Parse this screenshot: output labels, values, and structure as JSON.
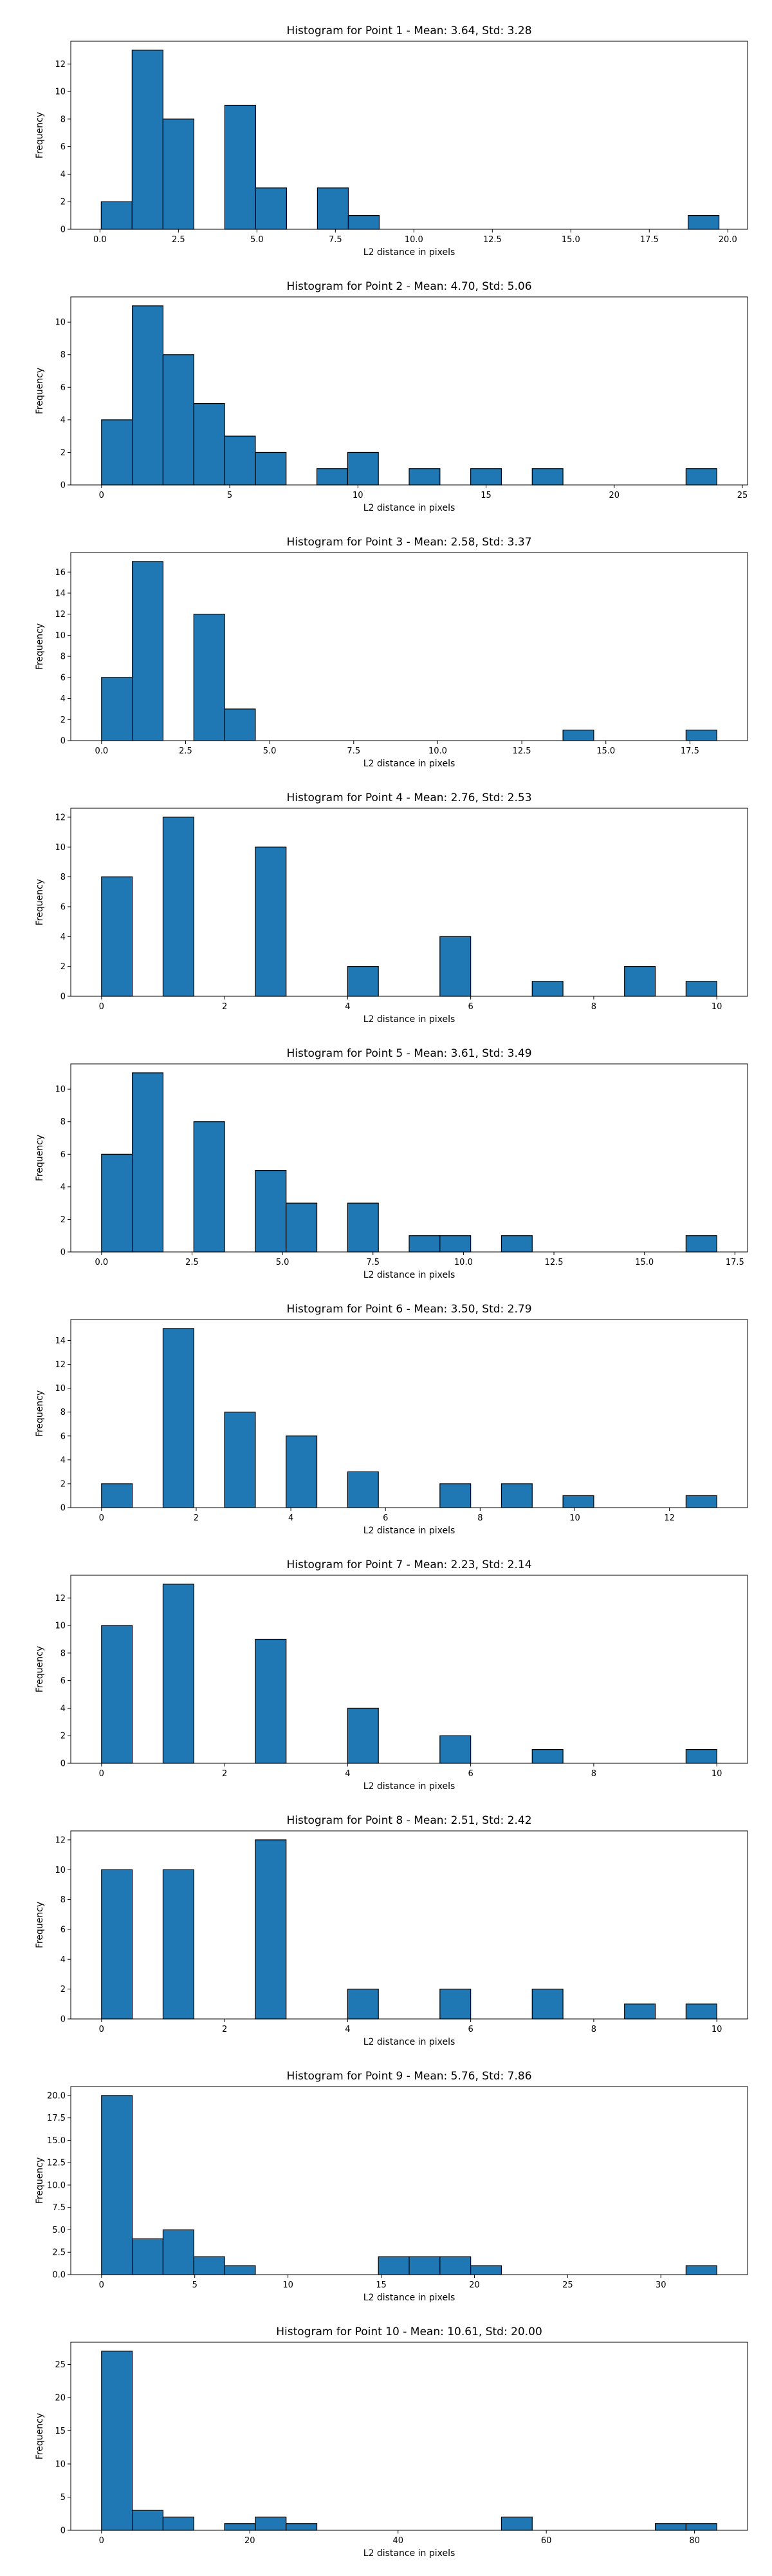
{
  "figure": {
    "bar_color": "#1f77b4",
    "edge_color": "#000000",
    "background": "#ffffff"
  },
  "chart_data": [
    {
      "type": "bar",
      "title": "Histogram for Point 1 - Mean: 3.64, Std: 3.28",
      "xlabel": "L2 distance in pixels",
      "ylabel": "Frequency",
      "bin_start": 0.04,
      "bin_width": 0.984,
      "counts": [
        2,
        13,
        8,
        0,
        9,
        3,
        0,
        3,
        1,
        0,
        0,
        0,
        0,
        0,
        0,
        0,
        0,
        0,
        0,
        1
      ],
      "xlim": [
        -0.93,
        20.63
      ],
      "ylim": [
        0,
        13.65
      ],
      "xticks": [
        0.0,
        2.5,
        5.0,
        7.5,
        10.0,
        12.5,
        15.0,
        17.5,
        20.0
      ],
      "xtick_labels": [
        "0.0",
        "2.5",
        "5.0",
        "7.5",
        "10.0",
        "12.5",
        "15.0",
        "17.5",
        "20.0"
      ],
      "yticks": [
        0,
        2,
        4,
        6,
        8,
        10,
        12
      ],
      "ytick_labels": [
        "0",
        "2",
        "4",
        "6",
        "8",
        "10",
        "12"
      ]
    },
    {
      "type": "bar",
      "title": "Histogram for Point 2 - Mean: 4.70, Std: 5.06",
      "xlabel": "L2 distance in pixels",
      "ylabel": "Frequency",
      "bin_start": 0.0,
      "bin_width": 1.2,
      "counts": [
        4,
        11,
        8,
        5,
        3,
        2,
        0,
        1,
        2,
        0,
        1,
        0,
        1,
        0,
        1,
        0,
        0,
        0,
        0,
        1
      ],
      "xlim": [
        -1.2,
        25.2
      ],
      "ylim": [
        0,
        11.55
      ],
      "xticks": [
        0,
        5,
        10,
        15,
        20,
        25
      ],
      "xtick_labels": [
        "0",
        "5",
        "10",
        "15",
        "20",
        "25"
      ],
      "yticks": [
        0,
        2,
        4,
        6,
        8,
        10
      ],
      "ytick_labels": [
        "0",
        "2",
        "4",
        "6",
        "8",
        "10"
      ]
    },
    {
      "type": "bar",
      "title": "Histogram for Point 3 - Mean: 2.58, Std: 3.37",
      "xlabel": "L2 distance in pixels",
      "ylabel": "Frequency",
      "bin_start": 0.0,
      "bin_width": 0.915,
      "counts": [
        6,
        17,
        0,
        12,
        3,
        0,
        0,
        0,
        0,
        0,
        0,
        0,
        0,
        0,
        0,
        1,
        0,
        0,
        0,
        1
      ],
      "xlim": [
        -0.915,
        19.215
      ],
      "ylim": [
        0,
        17.85
      ],
      "xticks": [
        0.0,
        2.5,
        5.0,
        7.5,
        10.0,
        12.5,
        15.0,
        17.5
      ],
      "xtick_labels": [
        "0.0",
        "2.5",
        "5.0",
        "7.5",
        "10.0",
        "12.5",
        "15.0",
        "17.5"
      ],
      "yticks": [
        0,
        2,
        4,
        6,
        8,
        10,
        12,
        14,
        16
      ],
      "ytick_labels": [
        "0",
        "2",
        "4",
        "6",
        "8",
        "10",
        "12",
        "14",
        "16"
      ]
    },
    {
      "type": "bar",
      "title": "Histogram for Point 4 - Mean: 2.76, Std: 2.53",
      "xlabel": "L2 distance in pixels",
      "ylabel": "Frequency",
      "bin_start": 0.0,
      "bin_width": 0.5,
      "counts": [
        8,
        0,
        12,
        0,
        0,
        10,
        0,
        0,
        2,
        0,
        0,
        4,
        0,
        0,
        1,
        0,
        0,
        2,
        0,
        1
      ],
      "xlim": [
        -0.5,
        10.5
      ],
      "ylim": [
        0,
        12.6
      ],
      "xticks": [
        0,
        2,
        4,
        6,
        8,
        10
      ],
      "xtick_labels": [
        "0",
        "2",
        "4",
        "6",
        "8",
        "10"
      ],
      "yticks": [
        0,
        2,
        4,
        6,
        8,
        10,
        12
      ],
      "ytick_labels": [
        "0",
        "2",
        "4",
        "6",
        "8",
        "10",
        "12"
      ]
    },
    {
      "type": "bar",
      "title": "Histogram for Point 5 - Mean: 3.61, Std: 3.49",
      "xlabel": "L2 distance in pixels",
      "ylabel": "Frequency",
      "bin_start": 0.0,
      "bin_width": 0.85,
      "counts": [
        6,
        11,
        0,
        8,
        0,
        5,
        3,
        0,
        3,
        0,
        1,
        1,
        0,
        1,
        0,
        0,
        0,
        0,
        0,
        1
      ],
      "xlim": [
        -0.85,
        17.85
      ],
      "ylim": [
        0,
        11.55
      ],
      "xticks": [
        0.0,
        2.5,
        5.0,
        7.5,
        10.0,
        12.5,
        15.0,
        17.5
      ],
      "xtick_labels": [
        "0.0",
        "2.5",
        "5.0",
        "7.5",
        "10.0",
        "12.5",
        "15.0",
        "17.5"
      ],
      "yticks": [
        0,
        2,
        4,
        6,
        8,
        10
      ],
      "ytick_labels": [
        "0",
        "2",
        "4",
        "6",
        "8",
        "10"
      ]
    },
    {
      "type": "bar",
      "title": "Histogram for Point 6 - Mean: 3.50, Std: 2.79",
      "xlabel": "L2 distance in pixels",
      "ylabel": "Frequency",
      "bin_start": 0.0,
      "bin_width": 0.65,
      "counts": [
        2,
        0,
        15,
        0,
        8,
        0,
        6,
        0,
        3,
        0,
        0,
        2,
        0,
        2,
        0,
        1,
        0,
        0,
        0,
        1
      ],
      "xlim": [
        -0.65,
        13.65
      ],
      "ylim": [
        0,
        15.75
      ],
      "xticks": [
        0,
        2,
        4,
        6,
        8,
        10,
        12
      ],
      "xtick_labels": [
        "0",
        "2",
        "4",
        "6",
        "8",
        "10",
        "12"
      ],
      "yticks": [
        0,
        2,
        4,
        6,
        8,
        10,
        12,
        14
      ],
      "ytick_labels": [
        "0",
        "2",
        "4",
        "6",
        "8",
        "10",
        "12",
        "14"
      ]
    },
    {
      "type": "bar",
      "title": "Histogram for Point 7 - Mean: 2.23, Std: 2.14",
      "xlabel": "L2 distance in pixels",
      "ylabel": "Frequency",
      "bin_start": 0.0,
      "bin_width": 0.5,
      "counts": [
        10,
        0,
        13,
        0,
        0,
        9,
        0,
        0,
        4,
        0,
        0,
        2,
        0,
        0,
        1,
        0,
        0,
        0,
        0,
        1
      ],
      "xlim": [
        -0.5,
        10.5
      ],
      "ylim": [
        0,
        13.65
      ],
      "xticks": [
        0,
        2,
        4,
        6,
        8,
        10
      ],
      "xtick_labels": [
        "0",
        "2",
        "4",
        "6",
        "8",
        "10"
      ],
      "yticks": [
        0,
        2,
        4,
        6,
        8,
        10,
        12
      ],
      "ytick_labels": [
        "0",
        "2",
        "4",
        "6",
        "8",
        "10",
        "12"
      ]
    },
    {
      "type": "bar",
      "title": "Histogram for Point 8 - Mean: 2.51, Std: 2.42",
      "xlabel": "L2 distance in pixels",
      "ylabel": "Frequency",
      "bin_start": 0.0,
      "bin_width": 0.5,
      "counts": [
        10,
        0,
        10,
        0,
        0,
        12,
        0,
        0,
        2,
        0,
        0,
        2,
        0,
        0,
        2,
        0,
        0,
        1,
        0,
        1
      ],
      "xlim": [
        -0.5,
        10.5
      ],
      "ylim": [
        0,
        12.6
      ],
      "xticks": [
        0,
        2,
        4,
        6,
        8,
        10
      ],
      "xtick_labels": [
        "0",
        "2",
        "4",
        "6",
        "8",
        "10"
      ],
      "yticks": [
        0,
        2,
        4,
        6,
        8,
        10,
        12
      ],
      "ytick_labels": [
        "0",
        "2",
        "4",
        "6",
        "8",
        "10",
        "12"
      ]
    },
    {
      "type": "bar",
      "title": "Histogram for Point 9 - Mean: 5.76, Std: 7.86",
      "xlabel": "L2 distance in pixels",
      "ylabel": "Frequency",
      "bin_start": 0.0,
      "bin_width": 1.65,
      "counts": [
        20,
        4,
        5,
        2,
        1,
        0,
        0,
        0,
        0,
        2,
        2,
        2,
        1,
        0,
        0,
        0,
        0,
        0,
        0,
        1
      ],
      "xlim": [
        -1.65,
        34.65
      ],
      "ylim": [
        0,
        21.0
      ],
      "xticks": [
        0,
        5,
        10,
        15,
        20,
        25,
        30
      ],
      "xtick_labels": [
        "0",
        "5",
        "10",
        "15",
        "20",
        "25",
        "30"
      ],
      "yticks": [
        0,
        2.5,
        5.0,
        7.5,
        10.0,
        12.5,
        15.0,
        17.5,
        20.0
      ],
      "ytick_labels": [
        "0.0",
        "2.5",
        "5.0",
        "7.5",
        "10.0",
        "12.5",
        "15.0",
        "17.5",
        "20.0"
      ]
    },
    {
      "type": "bar",
      "title": "Histogram for Point 10 - Mean: 10.61, Std: 20.00",
      "xlabel": "L2 distance in pixels",
      "ylabel": "Frequency",
      "bin_start": 0.0,
      "bin_width": 4.15,
      "counts": [
        27,
        3,
        2,
        0,
        1,
        2,
        1,
        0,
        0,
        0,
        0,
        0,
        0,
        2,
        0,
        0,
        0,
        0,
        1,
        1
      ],
      "xlim": [
        -4.15,
        87.15
      ],
      "ylim": [
        0,
        28.35
      ],
      "xticks": [
        0,
        20,
        40,
        60,
        80
      ],
      "xtick_labels": [
        "0",
        "20",
        "40",
        "60",
        "80"
      ],
      "yticks": [
        0,
        5,
        10,
        15,
        20,
        25
      ],
      "ytick_labels": [
        "0",
        "5",
        "10",
        "15",
        "20",
        "25"
      ]
    }
  ]
}
